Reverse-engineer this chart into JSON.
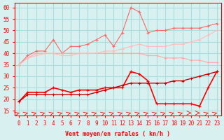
{
  "x": [
    0,
    1,
    2,
    3,
    4,
    5,
    6,
    7,
    8,
    9,
    10,
    11,
    12,
    13,
    14,
    15,
    16,
    17,
    18,
    19,
    20,
    21,
    22,
    23
  ],
  "background_color": "#d8f0f0",
  "grid_color": "#aadddd",
  "xlabel": "Vent moyen/en rafales ( kn/h )",
  "ylim": [
    13,
    62
  ],
  "yticks": [
    15,
    20,
    25,
    30,
    35,
    40,
    45,
    50,
    55,
    60
  ],
  "line1_color": "#ff6666",
  "line2_color": "#ffaaaa",
  "line3_color": "#ffbbbb",
  "line4_color": "#ff0000",
  "line5_color": "#cc0000",
  "line1_y": [
    35,
    39,
    41,
    41,
    46,
    40,
    43,
    43,
    44,
    46,
    48,
    43,
    49,
    60,
    58,
    49,
    50,
    50,
    51,
    51,
    51,
    51,
    52,
    53
  ],
  "line2_y": [
    35,
    38,
    40,
    40,
    40,
    40,
    40,
    40,
    40,
    40,
    40,
    40,
    40,
    40,
    40,
    39,
    39,
    38,
    38,
    38,
    37,
    37,
    36,
    36
  ],
  "line3_y": [
    35,
    38,
    39,
    40,
    40,
    39,
    39,
    40,
    40,
    40,
    41,
    41,
    42,
    43,
    44,
    43,
    43,
    43,
    44,
    44,
    45,
    46,
    48,
    50
  ],
  "line4_y": [
    19,
    23,
    23,
    23,
    25,
    24,
    23,
    24,
    24,
    24,
    25,
    25,
    25,
    32,
    31,
    28,
    18,
    18,
    18,
    18,
    18,
    17,
    25,
    32
  ],
  "line5_y": [
    19,
    22,
    22,
    22,
    22,
    22,
    22,
    22,
    22,
    23,
    24,
    25,
    26,
    27,
    27,
    27,
    27,
    27,
    28,
    28,
    29,
    30,
    31,
    32
  ]
}
